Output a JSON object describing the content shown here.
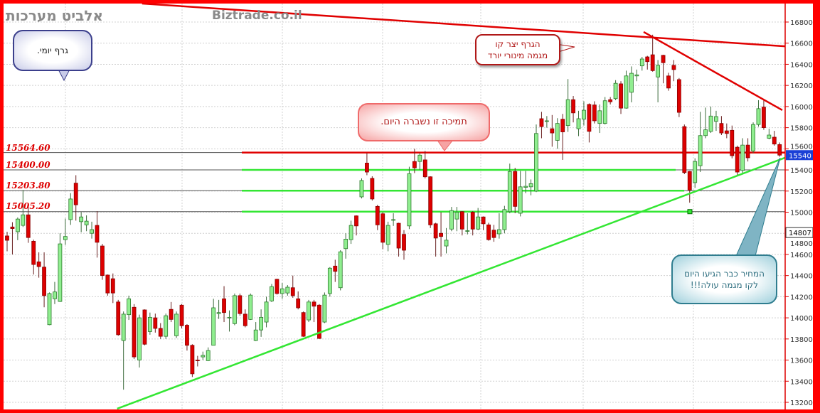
{
  "header": {
    "title": "אלביט מערכות",
    "site": "Biztrade.co.il"
  },
  "callouts": {
    "daily": "גרף יומי.",
    "down_trend_line1": "הגרף יצר קו",
    "down_trend_line2": "מגמה מינורי יורד",
    "support_broken": "תמיכה  זו נשברה היום.",
    "up_trend_line1": "המחיר כבר הגיעו היום",
    "up_trend_line2": "לקו מגמה  עולה!!!"
  },
  "colors": {
    "frame": "#ff0000",
    "up": "#90ee90",
    "down": "#dd0000",
    "support": "#33e633",
    "resistance": "#e00000",
    "last_price_box": "#1a3fd6"
  },
  "chart_data": {
    "type": "candlestick",
    "title": "",
    "ylim": [
      13200,
      16800
    ],
    "yticks": [
      "16800",
      "16600",
      "16400",
      "16200",
      "16000",
      "15800",
      "15600",
      "15400",
      "15200",
      "15000",
      "14800",
      "14600",
      "14400",
      "14200",
      "14000",
      "13800",
      "13600",
      "13400",
      "13200"
    ],
    "grid": true,
    "y_axis_side": "right",
    "last_price_label": "15540",
    "marker_price_label": "14807",
    "levels": [
      {
        "label": "15564.60",
        "value": 15564.6,
        "color": "red"
      },
      {
        "label": "15400.00",
        "value": 15400.0,
        "color": "green"
      },
      {
        "label": "15203.80",
        "value": 15203.8,
        "color": "green"
      },
      {
        "label": "15005.20",
        "value": 15005.2,
        "color": "green"
      }
    ],
    "trendlines": [
      {
        "name": "uptrend",
        "color": "green",
        "from": [
          20.8,
          13140
        ],
        "to": [
          147,
          15515
        ]
      },
      {
        "name": "long-resistance",
        "color": "red",
        "from": [
          25.5,
          16975
        ],
        "to": [
          147,
          16570
        ]
      },
      {
        "name": "minor-downtrend",
        "color": "red",
        "from": [
          120.3,
          16706
        ],
        "to": [
          146.5,
          15966
        ]
      }
    ],
    "ohlc_fields": [
      "open",
      "high",
      "low",
      "close"
    ],
    "candles": [
      [
        14775,
        14815,
        14630,
        14734
      ],
      [
        14860,
        14905,
        14600,
        14845
      ],
      [
        14815,
        14950,
        14735,
        14935
      ],
      [
        14875,
        15210,
        14860,
        14975
      ],
      [
        14975,
        15050,
        14710,
        14760
      ],
      [
        14725,
        14740,
        14410,
        14505
      ],
      [
        14530,
        14620,
        14380,
        14485
      ],
      [
        14480,
        14620,
        14100,
        14210
      ],
      [
        13935,
        14240,
        13930,
        14230
      ],
      [
        14180,
        14340,
        14130,
        14245
      ],
      [
        14155,
        14800,
        14150,
        14700
      ],
      [
        14740,
        14940,
        14690,
        14770
      ],
      [
        14930,
        15180,
        14880,
        15125
      ],
      [
        15275,
        15350,
        14920,
        15070
      ],
      [
        14910,
        15000,
        14810,
        14955
      ],
      [
        14880,
        14970,
        14820,
        14915
      ],
      [
        14800,
        14910,
        14750,
        14835
      ],
      [
        14875,
        15010,
        14570,
        14715
      ],
      [
        14680,
        14700,
        14360,
        14400
      ],
      [
        14405,
        14410,
        14210,
        14235
      ],
      [
        14370,
        14420,
        14140,
        14235
      ],
      [
        14150,
        14170,
        13830,
        13840
      ],
      [
        13785,
        14060,
        13320,
        14035
      ],
      [
        14030,
        14210,
        13980,
        14180
      ],
      [
        14100,
        14130,
        13610,
        13630
      ],
      [
        13600,
        14030,
        13530,
        14000
      ],
      [
        14075,
        14080,
        13740,
        13750
      ],
      [
        13870,
        14050,
        13840,
        14005
      ],
      [
        14000,
        14040,
        13860,
        13900
      ],
      [
        13900,
        13950,
        13800,
        13825
      ],
      [
        13825,
        14040,
        13800,
        14020
      ],
      [
        14080,
        14150,
        13960,
        13985
      ],
      [
        13830,
        14060,
        13810,
        14035
      ],
      [
        14120,
        14130,
        13900,
        13925
      ],
      [
        13930,
        13940,
        13690,
        13740
      ],
      [
        13740,
        13750,
        13440,
        13470
      ],
      [
        13600,
        13640,
        13540,
        13595
      ],
      [
        13630,
        13680,
        13600,
        13645
      ],
      [
        13595,
        13720,
        13590,
        13690
      ],
      [
        13740,
        14180,
        13740,
        14095
      ],
      [
        14040,
        14170,
        13990,
        14050
      ],
      [
        14180,
        14300,
        13960,
        14050
      ],
      [
        14000,
        14070,
        13870,
        14005
      ],
      [
        13945,
        14230,
        13930,
        14210
      ],
      [
        14210,
        14230,
        14020,
        14040
      ],
      [
        14035,
        14080,
        13910,
        13925
      ],
      [
        13985,
        14230,
        13980,
        14215
      ],
      [
        13785,
        13960,
        13780,
        13885
      ],
      [
        13885,
        14080,
        13820,
        14005
      ],
      [
        13960,
        14200,
        13910,
        14150
      ],
      [
        14160,
        14320,
        14150,
        14295
      ],
      [
        14365,
        14370,
        14220,
        14230
      ],
      [
        14230,
        14330,
        14180,
        14275
      ],
      [
        14235,
        14310,
        14210,
        14290
      ],
      [
        14285,
        14400,
        14190,
        14210
      ],
      [
        14180,
        14250,
        14080,
        14095
      ],
      [
        14050,
        14060,
        13820,
        13825
      ],
      [
        13980,
        14170,
        13960,
        14150
      ],
      [
        14150,
        14170,
        13960,
        14110
      ],
      [
        14120,
        14130,
        13800,
        13805
      ],
      [
        13960,
        14240,
        13950,
        14215
      ],
      [
        14230,
        14480,
        14200,
        14470
      ],
      [
        14490,
        14550,
        14340,
        14440
      ],
      [
        14285,
        14640,
        14260,
        14625
      ],
      [
        14655,
        14800,
        14560,
        14745
      ],
      [
        14740,
        14920,
        14700,
        14875
      ],
      [
        14965,
        14970,
        14780,
        14870
      ],
      [
        15145,
        15320,
        15130,
        15300
      ],
      [
        15465,
        15560,
        15350,
        15380
      ],
      [
        15320,
        15340,
        15110,
        15125
      ],
      [
        15055,
        15070,
        14830,
        14880
      ],
      [
        14985,
        15000,
        14650,
        14715
      ],
      [
        14695,
        14910,
        14630,
        14875
      ],
      [
        14925,
        14990,
        14870,
        14930
      ],
      [
        14895,
        14900,
        14580,
        14660
      ],
      [
        14790,
        14830,
        14550,
        14640
      ],
      [
        14870,
        15430,
        14840,
        15365
      ],
      [
        15480,
        15600,
        15370,
        15420
      ],
      [
        15480,
        15560,
        15400,
        15540
      ],
      [
        15495,
        15580,
        15320,
        15335
      ],
      [
        15335,
        15340,
        14850,
        14880
      ],
      [
        14890,
        14900,
        14580,
        14755
      ],
      [
        14800,
        15000,
        14580,
        14770
      ],
      [
        14680,
        14850,
        14610,
        14735
      ],
      [
        14840,
        15050,
        14820,
        15015
      ],
      [
        14935,
        15050,
        14820,
        15000
      ],
      [
        15005,
        15010,
        14780,
        14840
      ],
      [
        14820,
        14990,
        14790,
        14825
      ],
      [
        15000,
        15010,
        14780,
        14840
      ],
      [
        14840,
        15040,
        14830,
        14955
      ],
      [
        14955,
        14960,
        14830,
        14890
      ],
      [
        14880,
        14900,
        14730,
        14740
      ],
      [
        14830,
        14880,
        14720,
        14760
      ],
      [
        14795,
        14990,
        14750,
        14835
      ],
      [
        14835,
        15060,
        14800,
        15025
      ],
      [
        15005,
        15460,
        14990,
        15385
      ],
      [
        15385,
        15420,
        14990,
        15055
      ],
      [
        14990,
        15390,
        14960,
        15240
      ],
      [
        15235,
        15390,
        15180,
        15245
      ],
      [
        15240,
        15310,
        15160,
        15270
      ],
      [
        15200,
        15830,
        15190,
        15745
      ],
      [
        15885,
        15950,
        15700,
        15810
      ],
      [
        15860,
        15910,
        15800,
        15865
      ],
      [
        15790,
        15920,
        15620,
        15750
      ],
      [
        15680,
        15890,
        15600,
        15840
      ],
      [
        15880,
        15930,
        15495,
        15760
      ],
      [
        15820,
        16260,
        15760,
        16065
      ],
      [
        16065,
        16100,
        15850,
        15940
      ],
      [
        15790,
        15960,
        15720,
        15885
      ],
      [
        15880,
        16050,
        15820,
        15965
      ],
      [
        16020,
        16030,
        15660,
        15765
      ],
      [
        16015,
        16050,
        15840,
        15865
      ],
      [
        15840,
        16020,
        15750,
        15960
      ],
      [
        15840,
        16090,
        15830,
        16055
      ],
      [
        16065,
        16090,
        16020,
        16045
      ],
      [
        16075,
        16250,
        16060,
        16220
      ],
      [
        16215,
        16240,
        15930,
        15985
      ],
      [
        15985,
        16340,
        15980,
        16290
      ],
      [
        16135,
        16380,
        16040,
        16315
      ],
      [
        16290,
        16350,
        16240,
        16300
      ],
      [
        16385,
        16470,
        16340,
        16450
      ],
      [
        16470,
        16480,
        16350,
        16425
      ],
      [
        16490,
        16680,
        16330,
        16340
      ],
      [
        16280,
        16440,
        16040,
        16390
      ],
      [
        16485,
        16490,
        16220,
        16415
      ],
      [
        16290,
        16320,
        16150,
        16175
      ],
      [
        16390,
        16440,
        16240,
        16350
      ],
      [
        16255,
        16270,
        15900,
        15945
      ],
      [
        15810,
        15830,
        15360,
        15375
      ],
      [
        15385,
        15390,
        15090,
        15210
      ],
      [
        15280,
        15510,
        15230,
        15480
      ],
      [
        15440,
        15950,
        15380,
        15725
      ],
      [
        15725,
        15990,
        15700,
        15780
      ],
      [
        15765,
        16000,
        15750,
        15910
      ],
      [
        15860,
        15960,
        15770,
        15905
      ],
      [
        15840,
        15910,
        15730,
        15750
      ],
      [
        15770,
        15840,
        15700,
        15745
      ],
      [
        15775,
        15820,
        15510,
        15535
      ],
      [
        15615,
        15630,
        15340,
        15380
      ],
      [
        15395,
        15700,
        15360,
        15635
      ],
      [
        15635,
        15700,
        15480,
        15515
      ],
      [
        15580,
        15850,
        15560,
        15830
      ],
      [
        15830,
        16060,
        15810,
        15980
      ],
      [
        15995,
        16060,
        15780,
        15800
      ],
      [
        15700,
        15790,
        15690,
        15730
      ],
      [
        15710,
        15770,
        15630,
        15645
      ],
      [
        15640,
        15660,
        15525,
        15540
      ]
    ]
  }
}
